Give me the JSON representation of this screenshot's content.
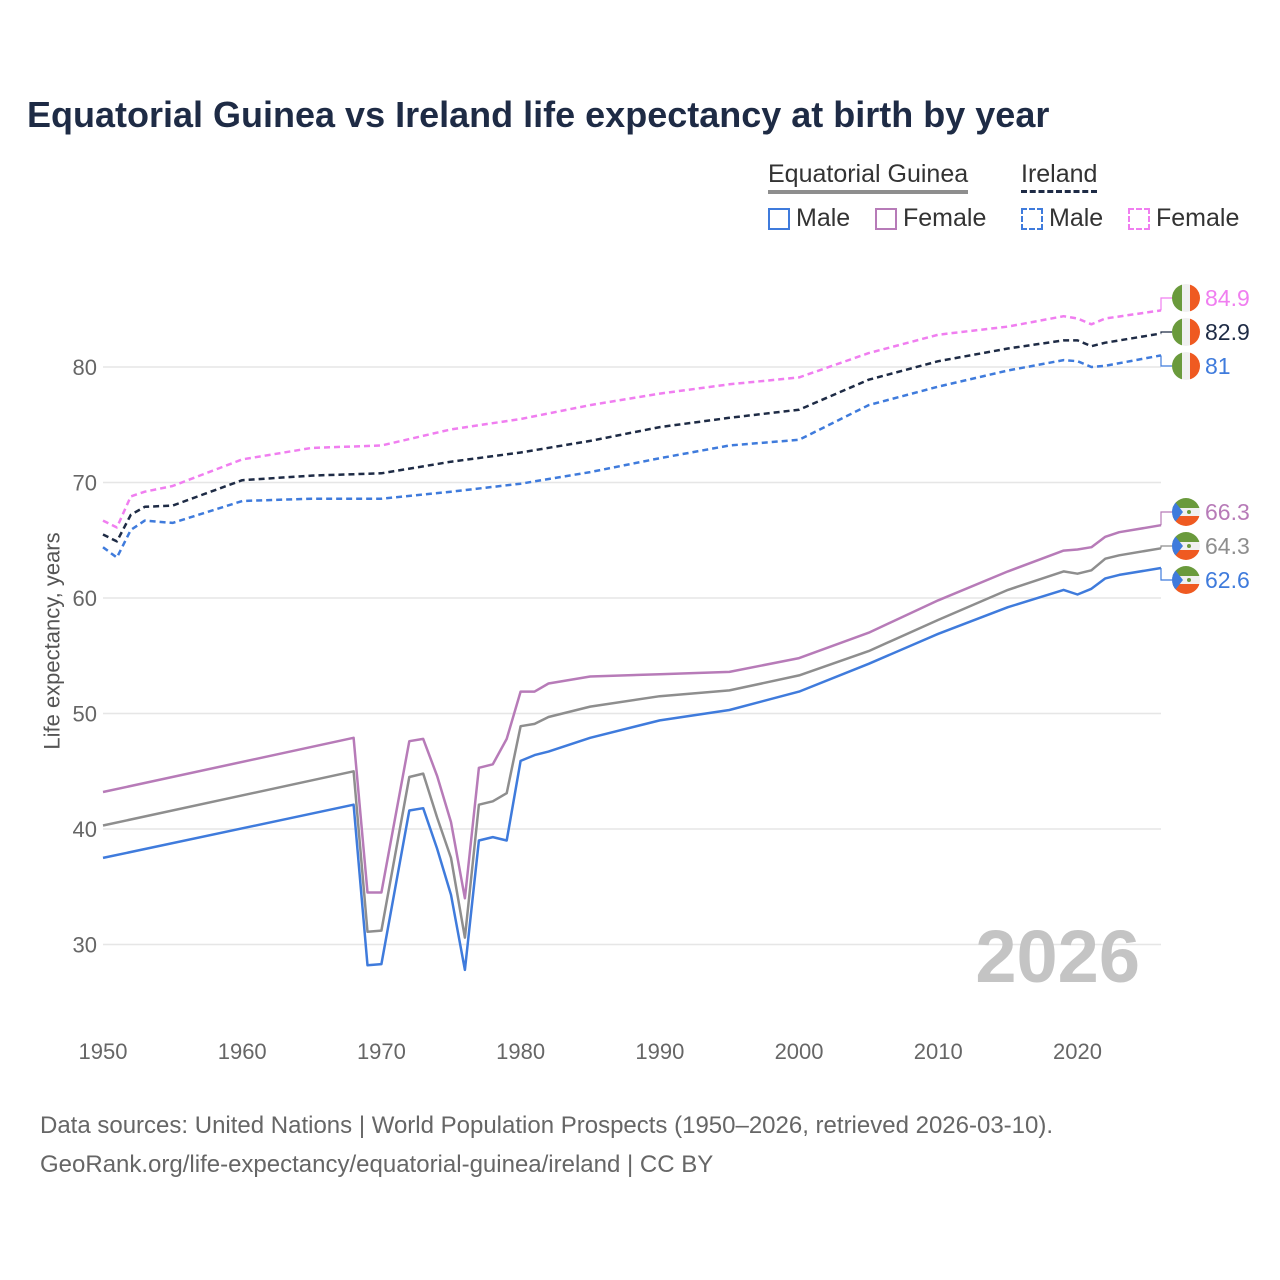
{
  "title": "Equatorial Guinea vs Ireland life expectancy at birth by year",
  "legend": {
    "groups": [
      {
        "label": "Equatorial Guinea"
      },
      {
        "label": "Ireland"
      }
    ],
    "items": [
      {
        "label": "Male",
        "group": "Equatorial Guinea",
        "color": "#3f7bdc",
        "dash": false
      },
      {
        "label": "Female",
        "group": "Equatorial Guinea",
        "color": "#b77bb8",
        "dash": false
      },
      {
        "label": "Male",
        "group": "Ireland",
        "color": "#3f7bdc",
        "dash": true
      },
      {
        "label": "Female",
        "group": "Ireland",
        "color": "#f07ef0",
        "dash": true
      }
    ]
  },
  "watermark_year": "2026",
  "footer": {
    "line1": "Data sources: United Nations | World Population Prospects (1950–2026, retrieved 2026-03-10).",
    "line2": "GeoRank.org/life-expectancy/equatorial-guinea/ireland | CC BY"
  },
  "chart_data": {
    "type": "line",
    "title": "Equatorial Guinea vs Ireland life expectancy at birth by year",
    "xlabel": "",
    "ylabel": "Life expectancy, years",
    "xlim": [
      1950,
      2026
    ],
    "ylim": [
      23,
      88
    ],
    "xticks": [
      1950,
      1960,
      1970,
      1980,
      1990,
      2000,
      2010,
      2020
    ],
    "yticks": [
      30,
      40,
      50,
      60,
      70,
      80
    ],
    "grid": true,
    "series": [
      {
        "name": "Ireland Female",
        "country": "Ireland",
        "color": "#f07ef0",
        "dash": true,
        "end_label": "84.9",
        "flag": "ireland",
        "x": [
          1950,
          1951,
          1952,
          1953,
          1955,
          1960,
          1965,
          1970,
          1975,
          1980,
          1985,
          1990,
          1995,
          2000,
          2005,
          2010,
          2015,
          2019,
          2020,
          2021,
          2022,
          2026
        ],
        "y": [
          66.7,
          66.1,
          68.8,
          69.2,
          69.7,
          72.0,
          73.0,
          73.2,
          74.6,
          75.5,
          76.7,
          77.7,
          78.5,
          79.1,
          81.2,
          82.8,
          83.5,
          84.4,
          84.2,
          83.7,
          84.2,
          84.9
        ]
      },
      {
        "name": "Ireland Total",
        "country": "Ireland",
        "color": "#1e2b45",
        "dash": true,
        "end_label": "82.9",
        "flag": "ireland",
        "x": [
          1950,
          1951,
          1952,
          1953,
          1955,
          1960,
          1965,
          1970,
          1975,
          1980,
          1985,
          1990,
          1995,
          2000,
          2005,
          2010,
          2015,
          2019,
          2020,
          2021,
          2022,
          2026
        ],
        "y": [
          65.5,
          64.9,
          67.2,
          67.9,
          68.0,
          70.2,
          70.6,
          70.8,
          71.8,
          72.6,
          73.6,
          74.8,
          75.6,
          76.3,
          78.9,
          80.5,
          81.6,
          82.3,
          82.3,
          81.8,
          82.1,
          82.9
        ]
      },
      {
        "name": "Ireland Male",
        "country": "Ireland",
        "color": "#3f7bdc",
        "dash": true,
        "end_label": "81",
        "flag": "ireland",
        "x": [
          1950,
          1951,
          1952,
          1953,
          1955,
          1960,
          1965,
          1970,
          1975,
          1980,
          1985,
          1990,
          1995,
          2000,
          2005,
          2010,
          2015,
          2019,
          2020,
          2021,
          2022,
          2026
        ],
        "y": [
          64.4,
          63.5,
          65.9,
          66.7,
          66.5,
          68.4,
          68.6,
          68.6,
          69.2,
          69.9,
          70.9,
          72.1,
          73.2,
          73.7,
          76.7,
          78.3,
          79.7,
          80.6,
          80.5,
          80.0,
          80.1,
          81.0
        ]
      },
      {
        "name": "Equatorial Guinea Female",
        "country": "Equatorial Guinea",
        "color": "#b77bb8",
        "dash": false,
        "end_label": "66.3",
        "flag": "equatorial-guinea",
        "x": [
          1950,
          1968,
          1969,
          1970,
          1972,
          1973,
          1974,
          1975,
          1976,
          1977,
          1978,
          1979,
          1980,
          1981,
          1982,
          1985,
          1990,
          1995,
          2000,
          2005,
          2010,
          2015,
          2019,
          2020,
          2021,
          2022,
          2023,
          2026
        ],
        "y": [
          43.2,
          47.9,
          34.5,
          34.5,
          47.6,
          47.8,
          44.6,
          40.6,
          34.0,
          45.3,
          45.6,
          47.8,
          51.9,
          51.9,
          52.6,
          53.2,
          53.4,
          53.6,
          54.8,
          57.0,
          59.8,
          62.3,
          64.1,
          64.2,
          64.4,
          65.3,
          65.7,
          66.3
        ]
      },
      {
        "name": "Equatorial Guinea Total",
        "country": "Equatorial Guinea",
        "color": "#8e8e8e",
        "dash": false,
        "end_label": "64.3",
        "flag": "equatorial-guinea",
        "x": [
          1950,
          1968,
          1969,
          1970,
          1972,
          1973,
          1974,
          1975,
          1976,
          1977,
          1978,
          1979,
          1980,
          1981,
          1982,
          1985,
          1990,
          1995,
          2000,
          2005,
          2010,
          2015,
          2019,
          2020,
          2021,
          2022,
          2023,
          2026
        ],
        "y": [
          40.3,
          45.0,
          31.1,
          31.2,
          44.5,
          44.8,
          41.0,
          37.5,
          30.6,
          42.1,
          42.4,
          43.1,
          48.9,
          49.1,
          49.7,
          50.6,
          51.5,
          52.0,
          53.3,
          55.4,
          58.1,
          60.7,
          62.3,
          62.1,
          62.4,
          63.4,
          63.7,
          64.3
        ]
      },
      {
        "name": "Equatorial Guinea Male",
        "country": "Equatorial Guinea",
        "color": "#3f7bdc",
        "dash": false,
        "end_label": "62.6",
        "flag": "equatorial-guinea",
        "x": [
          1950,
          1968,
          1969,
          1970,
          1972,
          1973,
          1974,
          1975,
          1976,
          1977,
          1978,
          1979,
          1980,
          1981,
          1982,
          1985,
          1990,
          1995,
          2000,
          2005,
          2010,
          2015,
          2019,
          2020,
          2021,
          2022,
          2023,
          2026
        ],
        "y": [
          37.5,
          42.1,
          28.2,
          28.3,
          41.6,
          41.8,
          38.3,
          34.3,
          27.8,
          39.0,
          39.3,
          39.0,
          45.9,
          46.4,
          46.7,
          47.9,
          49.4,
          50.3,
          51.9,
          54.3,
          56.9,
          59.2,
          60.7,
          60.3,
          60.8,
          61.7,
          62.0,
          62.6
        ]
      }
    ]
  }
}
